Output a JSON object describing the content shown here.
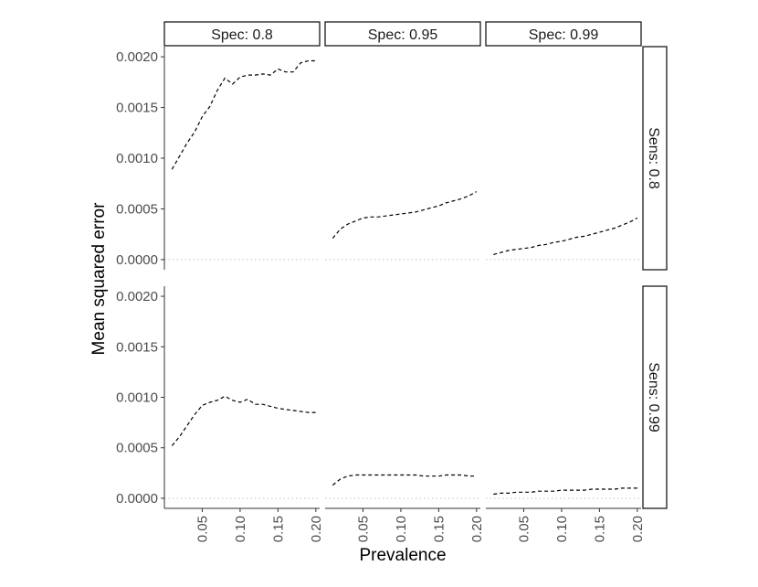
{
  "chart_data": {
    "type": "line",
    "xlabel": "Prevalence",
    "ylabel": "Mean squared error",
    "xlim": [
      0.0,
      0.205
    ],
    "ylim": [
      -0.0001,
      0.0021
    ],
    "x_ticks": [
      "0.05",
      "0.10",
      "0.15",
      "0.20"
    ],
    "x_tick_values": [
      0.05,
      0.1,
      0.15,
      0.2
    ],
    "y_ticks": [
      "0.0000",
      "0.0005",
      "0.0010",
      "0.0015",
      "0.0020"
    ],
    "y_tick_values": [
      0.0,
      0.0005,
      0.001,
      0.0015,
      0.002
    ],
    "reference_line": {
      "y": 0.0,
      "style": "dotted",
      "color": "#bfbfbf"
    },
    "line_style": "dashed",
    "line_color": "#000000",
    "col_labels": [
      "Spec: 0.8",
      "Spec: 0.95",
      "Spec: 0.99"
    ],
    "row_labels": [
      "Sens: 0.8",
      "Sens: 0.99"
    ],
    "panels": [
      {
        "row": 0,
        "col": 0,
        "x": [
          0.01,
          0.02,
          0.03,
          0.04,
          0.05,
          0.06,
          0.07,
          0.08,
          0.09,
          0.1,
          0.11,
          0.12,
          0.13,
          0.14,
          0.15,
          0.16,
          0.17,
          0.18,
          0.19,
          0.2
        ],
        "y": [
          0.00089,
          0.00102,
          0.00115,
          0.00126,
          0.00141,
          0.00151,
          0.00167,
          0.00179,
          0.00173,
          0.0018,
          0.00182,
          0.00182,
          0.00183,
          0.00182,
          0.00188,
          0.00185,
          0.00185,
          0.00194,
          0.00196,
          0.00196
        ]
      },
      {
        "row": 0,
        "col": 1,
        "x": [
          0.01,
          0.02,
          0.03,
          0.04,
          0.05,
          0.06,
          0.07,
          0.08,
          0.09,
          0.1,
          0.11,
          0.12,
          0.13,
          0.14,
          0.15,
          0.16,
          0.17,
          0.18,
          0.19,
          0.2
        ],
        "y": [
          0.00021,
          0.0003,
          0.00035,
          0.00038,
          0.00041,
          0.00042,
          0.00042,
          0.00043,
          0.00044,
          0.00045,
          0.00046,
          0.00047,
          0.00049,
          0.00051,
          0.00053,
          0.00056,
          0.00058,
          0.0006,
          0.00063,
          0.00067
        ]
      },
      {
        "row": 0,
        "col": 2,
        "x": [
          0.01,
          0.02,
          0.03,
          0.04,
          0.05,
          0.06,
          0.07,
          0.08,
          0.09,
          0.1,
          0.11,
          0.12,
          0.13,
          0.14,
          0.15,
          0.16,
          0.17,
          0.18,
          0.19,
          0.2
        ],
        "y": [
          5e-05,
          7e-05,
          9e-05,
          0.0001,
          0.00011,
          0.00012,
          0.00014,
          0.00015,
          0.00017,
          0.00018,
          0.0002,
          0.00022,
          0.00023,
          0.00025,
          0.00027,
          0.00029,
          0.00031,
          0.00034,
          0.00037,
          0.00041
        ]
      },
      {
        "row": 1,
        "col": 0,
        "x": [
          0.01,
          0.02,
          0.03,
          0.04,
          0.05,
          0.06,
          0.07,
          0.08,
          0.09,
          0.1,
          0.11,
          0.12,
          0.13,
          0.14,
          0.15,
          0.16,
          0.17,
          0.18,
          0.19,
          0.2
        ],
        "y": [
          0.00052,
          0.00061,
          0.00072,
          0.00083,
          0.00092,
          0.00095,
          0.00097,
          0.00101,
          0.00097,
          0.00095,
          0.00098,
          0.00093,
          0.00093,
          0.00091,
          0.00089,
          0.00088,
          0.00087,
          0.00086,
          0.00085,
          0.00085
        ]
      },
      {
        "row": 1,
        "col": 1,
        "x": [
          0.01,
          0.02,
          0.03,
          0.04,
          0.05,
          0.06,
          0.07,
          0.08,
          0.09,
          0.1,
          0.11,
          0.12,
          0.13,
          0.14,
          0.15,
          0.16,
          0.17,
          0.18,
          0.19,
          0.2
        ],
        "y": [
          0.00013,
          0.00019,
          0.00022,
          0.00023,
          0.00023,
          0.00023,
          0.00023,
          0.00023,
          0.00023,
          0.00023,
          0.00023,
          0.00023,
          0.00022,
          0.00022,
          0.00022,
          0.00023,
          0.00023,
          0.00023,
          0.00022,
          0.00022
        ]
      },
      {
        "row": 1,
        "col": 2,
        "x": [
          0.01,
          0.02,
          0.03,
          0.04,
          0.05,
          0.06,
          0.07,
          0.08,
          0.09,
          0.1,
          0.11,
          0.12,
          0.13,
          0.14,
          0.15,
          0.16,
          0.17,
          0.18,
          0.19,
          0.2
        ],
        "y": [
          4e-05,
          5e-05,
          5e-05,
          6e-05,
          6e-05,
          6e-05,
          7e-05,
          7e-05,
          7e-05,
          8e-05,
          8e-05,
          8e-05,
          8e-05,
          9e-05,
          9e-05,
          9e-05,
          9e-05,
          0.0001,
          0.0001,
          0.0001
        ]
      }
    ]
  }
}
